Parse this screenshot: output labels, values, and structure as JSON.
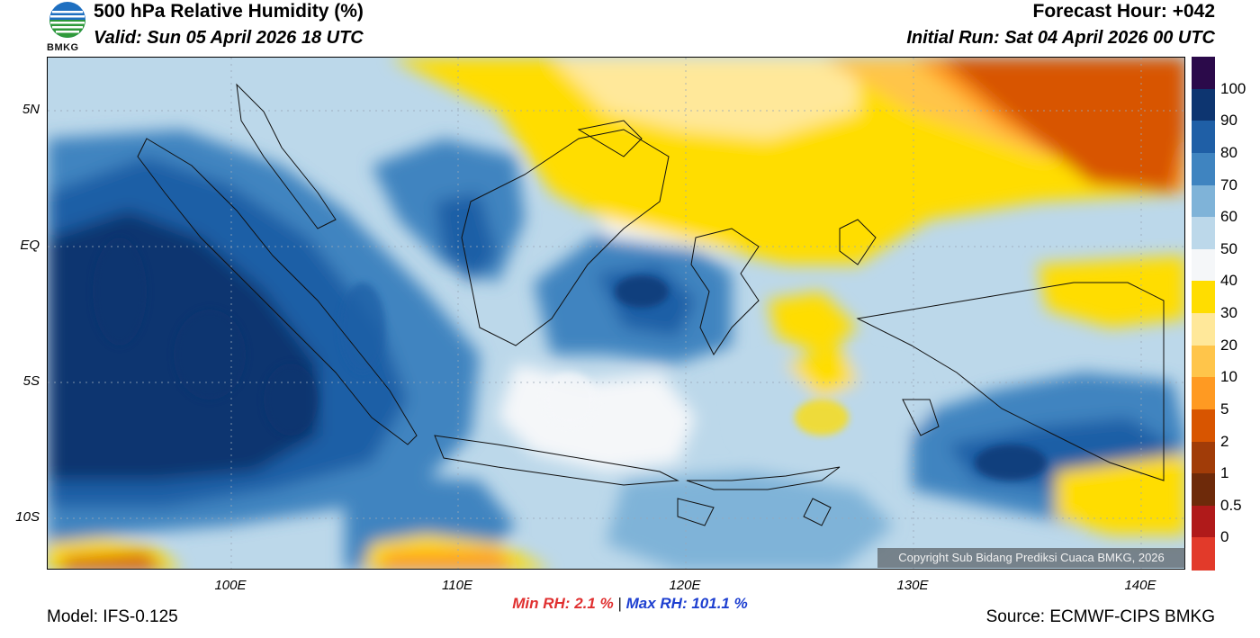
{
  "header": {
    "title": "500 hPa Relative Humidity (%)",
    "valid": "Valid: Sun 05 April 2026 18 UTC",
    "forecast_hour": "Forecast Hour: +042",
    "initial_run": "Initial Run: Sat 04 April 2026 00 UTC",
    "logo_text": "BMKG"
  },
  "axes": {
    "y_labels": [
      {
        "id": "5n",
        "text": "5N"
      },
      {
        "id": "eq",
        "text": "EQ"
      },
      {
        "id": "5s",
        "text": "5S"
      },
      {
        "id": "10s",
        "text": "10S"
      }
    ],
    "x_labels": [
      {
        "id": "100e",
        "text": "100E"
      },
      {
        "id": "110e",
        "text": "110E"
      },
      {
        "id": "120e",
        "text": "120E"
      },
      {
        "id": "130e",
        "text": "130E"
      },
      {
        "id": "140e",
        "text": "140E"
      }
    ]
  },
  "colorbar": {
    "labels": [
      "100",
      "90",
      "80",
      "70",
      "60",
      "50",
      "40",
      "30",
      "20",
      "10",
      "5",
      "2",
      "1",
      "0.5",
      "0"
    ],
    "colors": [
      "#2b0a4a",
      "#0d3570",
      "#1f5fa6",
      "#3f84c0",
      "#7fb3d8",
      "#bcd8ea",
      "#f5f7f9",
      "#ffdd00",
      "#ffe89a",
      "#ffc54a",
      "#ff9a22",
      "#d85500",
      "#a13c08",
      "#6e2a0a",
      "#b01a1a",
      "#e23a2a"
    ]
  },
  "stats": {
    "min_label": "Min RH:",
    "min_value": "2.1 %",
    "separator": "|",
    "max_label": "Max RH:",
    "max_value": "101.1 %"
  },
  "footer": {
    "model": "Model: IFS-0.125",
    "source": "Source: ECMWF-CIPS BMKG",
    "copyright": "Copyright Sub Bidang Prediksi Cuaca BMKG, 2026"
  }
}
